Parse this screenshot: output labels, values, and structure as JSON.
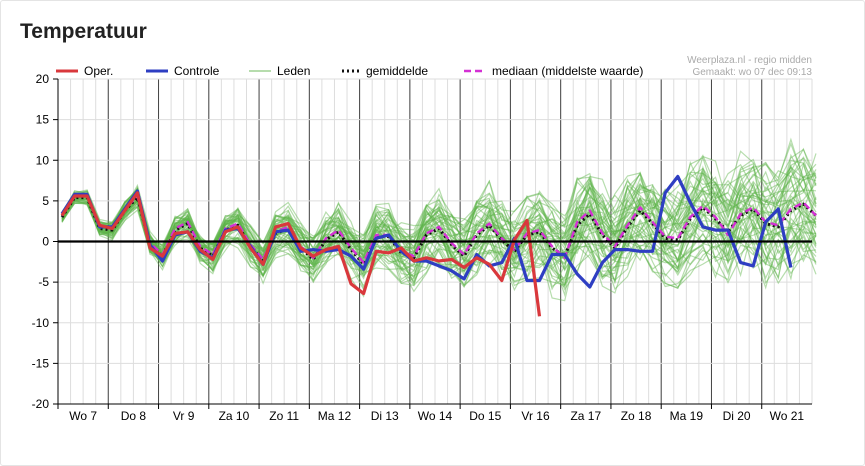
{
  "page": {
    "heading": "Temperatuur"
  },
  "chart_data": {
    "type": "line",
    "title": "",
    "credit": [
      "Weerplaza.nl - regio midden",
      "Gemaakt: wo 07 dec 09:13"
    ],
    "ylim": [
      -20,
      20
    ],
    "y_ticks": [
      20,
      15,
      10,
      5,
      0,
      -5,
      -10,
      -15,
      -20
    ],
    "x_step_hours": 6,
    "day_labels": [
      "Wo 7",
      "Do 8",
      "Vr 9",
      "Za 10",
      "Zo 11",
      "Ma 12",
      "Di 13",
      "Wo 14",
      "Do 15",
      "Vr 16",
      "Za 17",
      "Zo 18",
      "Ma 19",
      "Di 20",
      "Wo 21"
    ],
    "legend": [
      "Oper.",
      "Controle",
      "Leden",
      "gemiddelde",
      "mediaan (middelste waarde)"
    ],
    "colors": {
      "oper": "#d9383c",
      "controle": "#2e3ec2",
      "leden": "#5db34a",
      "gemiddelde": "#111111",
      "mediaan": "#d430d4",
      "zero": "#000000",
      "grid": "#dddddd",
      "day_line": "#444444"
    },
    "series": [
      {
        "name": "Oper.",
        "values": [
          3.2,
          5.6,
          5.6,
          2.0,
          1.6,
          3.8,
          6.0,
          -0.8,
          -1.8,
          1.0,
          1.2,
          -1.0,
          -2.2,
          1.2,
          1.8,
          -0.8,
          -2.8,
          1.8,
          2.2,
          -0.8,
          -1.8,
          -1.0,
          -0.6,
          -5.2,
          -6.4,
          -1.2,
          -1.4,
          -0.8,
          -2.4,
          -2.0,
          -2.4,
          -2.2,
          -3.2,
          -2.0,
          -2.8,
          -4.8,
          0.2,
          2.6,
          -9.2
        ]
      },
      {
        "name": "Controle",
        "values": [
          3.4,
          5.8,
          5.8,
          1.8,
          1.8,
          4.0,
          6.2,
          -0.4,
          -2.4,
          0.8,
          1.2,
          -1.2,
          -2.0,
          1.4,
          1.6,
          -0.6,
          -2.8,
          1.2,
          1.4,
          -1.2,
          -1.0,
          -1.2,
          -1.0,
          -1.8,
          -3.4,
          0.4,
          0.8,
          -1.2,
          -2.4,
          -2.4,
          -3.0,
          -3.6,
          -4.6,
          -1.6,
          -3.0,
          -2.6,
          0.4,
          -4.8,
          -4.8,
          -1.6,
          -1.6,
          -4.0,
          -5.6,
          -2.6,
          -1.0,
          -1.0,
          -1.2,
          -1.2,
          6.0,
          8.0,
          4.8,
          1.8,
          1.4,
          1.4,
          -2.6,
          -3.0,
          2.4,
          4.0,
          -3.2
        ]
      },
      {
        "name": "gemiddelde",
        "values": [
          3.0,
          5.4,
          5.4,
          1.6,
          1.4,
          3.8,
          5.4,
          -0.4,
          -1.8,
          1.4,
          2.2,
          -0.8,
          -1.8,
          1.4,
          2.0,
          -0.6,
          -2.4,
          1.0,
          1.6,
          -0.8,
          -2.2,
          0.2,
          1.2,
          -1.0,
          -2.8,
          0.6,
          0.6,
          -1.4,
          -2.0,
          0.8,
          1.6,
          -0.4,
          -1.8,
          0.8,
          2.0,
          0.2,
          -1.2,
          0.8,
          1.2,
          -0.8,
          -1.8,
          2.0,
          3.4,
          0.8,
          -0.8,
          1.8,
          3.8,
          2.2,
          0.4,
          0.2,
          2.8,
          4.2,
          2.8,
          1.2,
          3.2,
          4.0,
          2.2,
          1.8,
          3.8,
          4.6,
          3.2
        ]
      },
      {
        "name": "mediaan (middelste waarde)",
        "values": [
          3.2,
          5.6,
          5.6,
          1.8,
          1.6,
          4.0,
          5.6,
          -0.2,
          -1.6,
          1.6,
          2.4,
          -0.6,
          -1.6,
          1.6,
          2.2,
          -0.4,
          -2.2,
          1.2,
          1.8,
          -0.6,
          -2.0,
          0.4,
          1.4,
          -0.8,
          -2.6,
          0.8,
          0.8,
          -1.2,
          -1.8,
          1.0,
          1.8,
          -0.2,
          -1.6,
          1.0,
          2.2,
          0.4,
          -1.0,
          1.0,
          1.4,
          -0.6,
          -2.0,
          2.4,
          3.8,
          1.0,
          -0.6,
          2.0,
          4.2,
          2.4,
          0.6,
          0.4,
          3.0,
          4.4,
          3.0,
          0.8,
          3.4,
          4.2,
          2.4,
          2.0,
          4.0,
          4.8,
          3.2
        ]
      }
    ],
    "members_count": 50
  }
}
